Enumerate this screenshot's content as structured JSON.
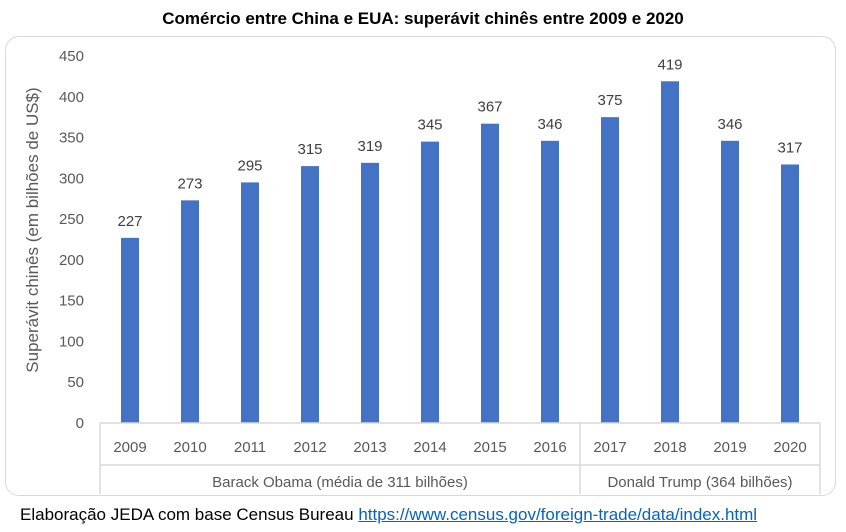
{
  "chart_data": {
    "type": "bar",
    "title": "Comércio entre China e EUA: superávit chinês entre 2009 e 2020",
    "ylabel": "Superávit chinês (em bilhões de US$)",
    "xlabel": "",
    "categories": [
      "2009",
      "2010",
      "2011",
      "2012",
      "2013",
      "2014",
      "2015",
      "2016",
      "2017",
      "2018",
      "2019",
      "2020"
    ],
    "values": [
      227,
      273,
      295,
      315,
      319,
      345,
      367,
      346,
      375,
      419,
      346,
      317
    ],
    "ylim": [
      0,
      450
    ],
    "yticks": [
      0,
      50,
      100,
      150,
      200,
      250,
      300,
      350,
      400,
      450
    ],
    "grid": false,
    "bar_color": "#4472c4",
    "data_labels": true,
    "groups": [
      {
        "label": "Barack Obama (média de 311 bilhões)",
        "count": 8
      },
      {
        "label": "Donald Trump (364 bilhões)",
        "count": 4
      }
    ]
  },
  "footer": {
    "text": "Elaboração JEDA com base Census Bureau ",
    "link": "https://www.census.gov/foreign-trade/data/index.html"
  }
}
